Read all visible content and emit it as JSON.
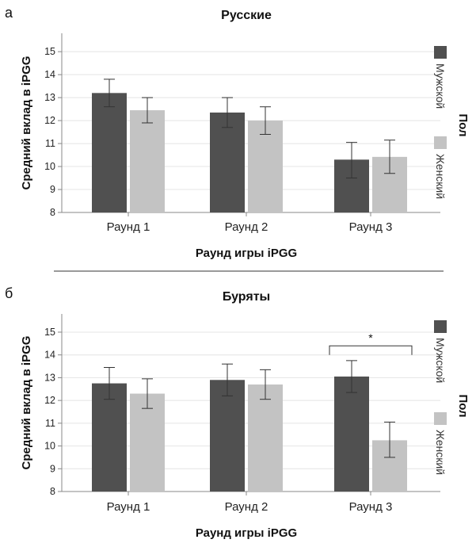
{
  "figure": {
    "panels": [
      {
        "letter": "а"
      },
      {
        "letter": "б"
      }
    ]
  },
  "colors": {
    "male": "#505050",
    "female": "#c3c3c3",
    "grid": "#e4e4e4",
    "axis": "#888888",
    "errorbar": "#333333",
    "separator": "#333333"
  },
  "chart_data": [
    {
      "type": "bar",
      "title": "Русские",
      "xlabel": "Раунд игры iPGG",
      "ylabel": "Средний вклад в iPGG",
      "categories": [
        "Раунд 1",
        "Раунд 2",
        "Раунд 3"
      ],
      "ylim": [
        8,
        15.8
      ],
      "yticks": [
        8,
        9,
        10,
        11,
        12,
        13,
        14,
        15
      ],
      "grid": true,
      "legend": {
        "title": "Пол",
        "position": "right",
        "entries": [
          "Мужской",
          "Женский"
        ]
      },
      "series": [
        {
          "name": "Мужской",
          "values": [
            13.2,
            12.35,
            10.3
          ],
          "err_low": [
            12.6,
            11.7,
            9.5
          ],
          "err_high": [
            13.8,
            13.0,
            11.05
          ]
        },
        {
          "name": "Женский",
          "values": [
            12.45,
            12.0,
            10.42
          ],
          "err_low": [
            11.9,
            11.4,
            9.7
          ],
          "err_high": [
            13.0,
            12.6,
            11.15
          ]
        }
      ],
      "annotations": []
    },
    {
      "type": "bar",
      "title": "Буряты",
      "xlabel": "Раунд игры iPGG",
      "ylabel": "Средний вклад в iPGG",
      "categories": [
        "Раунд 1",
        "Раунд 2",
        "Раунд 3"
      ],
      "ylim": [
        8,
        15.8
      ],
      "yticks": [
        8,
        9,
        10,
        11,
        12,
        13,
        14,
        15
      ],
      "grid": true,
      "legend": {
        "title": "Пол",
        "position": "right",
        "entries": [
          "Мужской",
          "Женский"
        ]
      },
      "series": [
        {
          "name": "Мужской",
          "values": [
            12.75,
            12.9,
            13.05
          ],
          "err_low": [
            12.05,
            12.2,
            12.35
          ],
          "err_high": [
            13.45,
            13.6,
            13.75
          ]
        },
        {
          "name": "Женский",
          "values": [
            12.3,
            12.7,
            10.25
          ],
          "err_low": [
            11.65,
            12.05,
            9.5
          ],
          "err_high": [
            12.95,
            13.35,
            11.05
          ]
        }
      ],
      "annotations": [
        {
          "text": "*",
          "type": "bracket",
          "category": "Раунд 3"
        }
      ]
    }
  ]
}
